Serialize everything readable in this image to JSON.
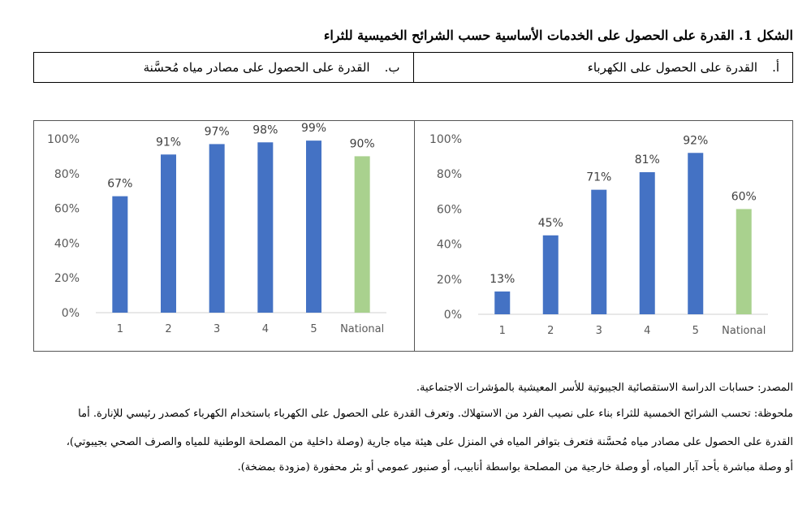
{
  "figure": {
    "title": "الشكل 1. القدرة على الحصول على الخدمات الأساسية حسب الشرائح الخميسية للثراء"
  },
  "panels": [
    {
      "letter": "أ.",
      "label": "القدرة على الحصول على الكهرباء"
    },
    {
      "letter": "ب.",
      "label": "القدرة على الحصول على مصادر مياه مُحسَّنة"
    }
  ],
  "chart_data": [
    {
      "type": "bar",
      "categories": [
        "1",
        "2",
        "3",
        "4",
        "5",
        "National"
      ],
      "values": [
        13,
        45,
        71,
        81,
        92,
        60
      ],
      "data_labels": [
        "13%",
        "45%",
        "71%",
        "81%",
        "92%",
        "60%"
      ],
      "ylim": [
        0,
        100
      ],
      "yticks": [
        "0%",
        "20%",
        "40%",
        "60%",
        "80%",
        "100%"
      ],
      "grid": false,
      "colors": [
        "#4472C4",
        "#4472C4",
        "#4472C4",
        "#4472C4",
        "#4472C4",
        "#A9D18E"
      ]
    },
    {
      "type": "bar",
      "categories": [
        "1",
        "2",
        "3",
        "4",
        "5",
        "National"
      ],
      "values": [
        67,
        91,
        97,
        98,
        99,
        90
      ],
      "data_labels": [
        "67%",
        "91%",
        "97%",
        "98%",
        "99%",
        "90%"
      ],
      "ylim": [
        0,
        100
      ],
      "yticks": [
        "0%",
        "20%",
        "40%",
        "60%",
        "80%",
        "100%"
      ],
      "grid": false,
      "colors": [
        "#4472C4",
        "#4472C4",
        "#4472C4",
        "#4472C4",
        "#4472C4",
        "#A9D18E"
      ]
    }
  ],
  "notes": {
    "source": "المصدر: حسابات الدراسة الاستقصائية الجيبوتية للأسر المعيشية بالمؤشرات الاجتماعية.",
    "note_line1": "ملحوظة: تحسب الشرائح الخمسية للثراء بناء على نصيب الفرد من الاستهلاك. وتعرف القدرة على الحصول على الكهرباء باستخدام الكهرباء كمصدر رئيسي للإنارة. أما",
    "note_line2": "القدرة على الحصول على مصادر مياه مُحسَّنة فتعرف بتوافر المياه في المنزل على هيئة مياه جارية (وصلة داخلية من المصلحة الوطنية للمياه والصرف الصحي بجيبوتي)،",
    "note_line3": "أو وصلة مباشرة بأحد آبار المياه، أو وصلة خارجية من المصلحة بواسطة أنابيب، أو صنبور عمومي أو بئر محفورة (مزودة بمضخة)."
  }
}
